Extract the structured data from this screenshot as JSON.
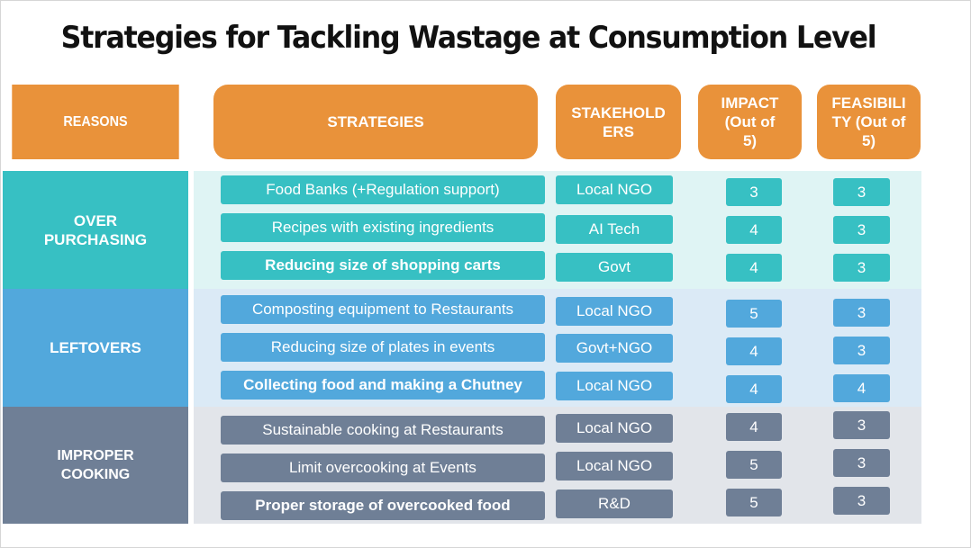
{
  "title": "Strategies for Tackling Wastage at Consumption Level",
  "headers": {
    "reasons": "REASONS",
    "strategies": "STRATEGIES",
    "stakeholders": "STAKEHOLD ERS",
    "impact": "IMPACT (Out of 5)",
    "feasibility": "FEASIBILI TY (Out of 5)"
  },
  "colors": {
    "header": "#e9923a",
    "over_purchasing": "#37c0c3",
    "leftovers": "#52a8dc",
    "improper_cooking": "#6f7f96"
  },
  "groups": [
    {
      "reason": "OVER PURCHASING",
      "rows": [
        {
          "strategy": "Food Banks (+Regulation support)",
          "stakeholder": "Local NGO",
          "impact": "3",
          "feasibility": "3"
        },
        {
          "strategy": "Recipes with existing ingredients",
          "stakeholder": "AI Tech",
          "impact": "4",
          "feasibility": "3"
        },
        {
          "strategy": "Reducing size of shopping carts",
          "stakeholder": "Govt",
          "impact": "4",
          "feasibility": "3"
        }
      ]
    },
    {
      "reason": "LEFTOVERS",
      "rows": [
        {
          "strategy": "Composting equipment to Restaurants",
          "stakeholder": "Local NGO",
          "impact": "5",
          "feasibility": "3"
        },
        {
          "strategy": "Reducing size of plates in events",
          "stakeholder": "Govt+NGO",
          "impact": "4",
          "feasibility": "3"
        },
        {
          "strategy": "Collecting food and making a Chutney",
          "stakeholder": "Local NGO",
          "impact": "4",
          "feasibility": "4"
        }
      ]
    },
    {
      "reason": "IMPROPER COOKING",
      "rows": [
        {
          "strategy": "Sustainable cooking at Restaurants",
          "stakeholder": "Local NGO",
          "impact": "4",
          "feasibility": "3"
        },
        {
          "strategy": "Limit overcooking at Events",
          "stakeholder": "Local NGO",
          "impact": "5",
          "feasibility": "3"
        },
        {
          "strategy": "Proper storage of overcooked food",
          "stakeholder": "R&D",
          "impact": "5",
          "feasibility": "3"
        }
      ]
    }
  ]
}
